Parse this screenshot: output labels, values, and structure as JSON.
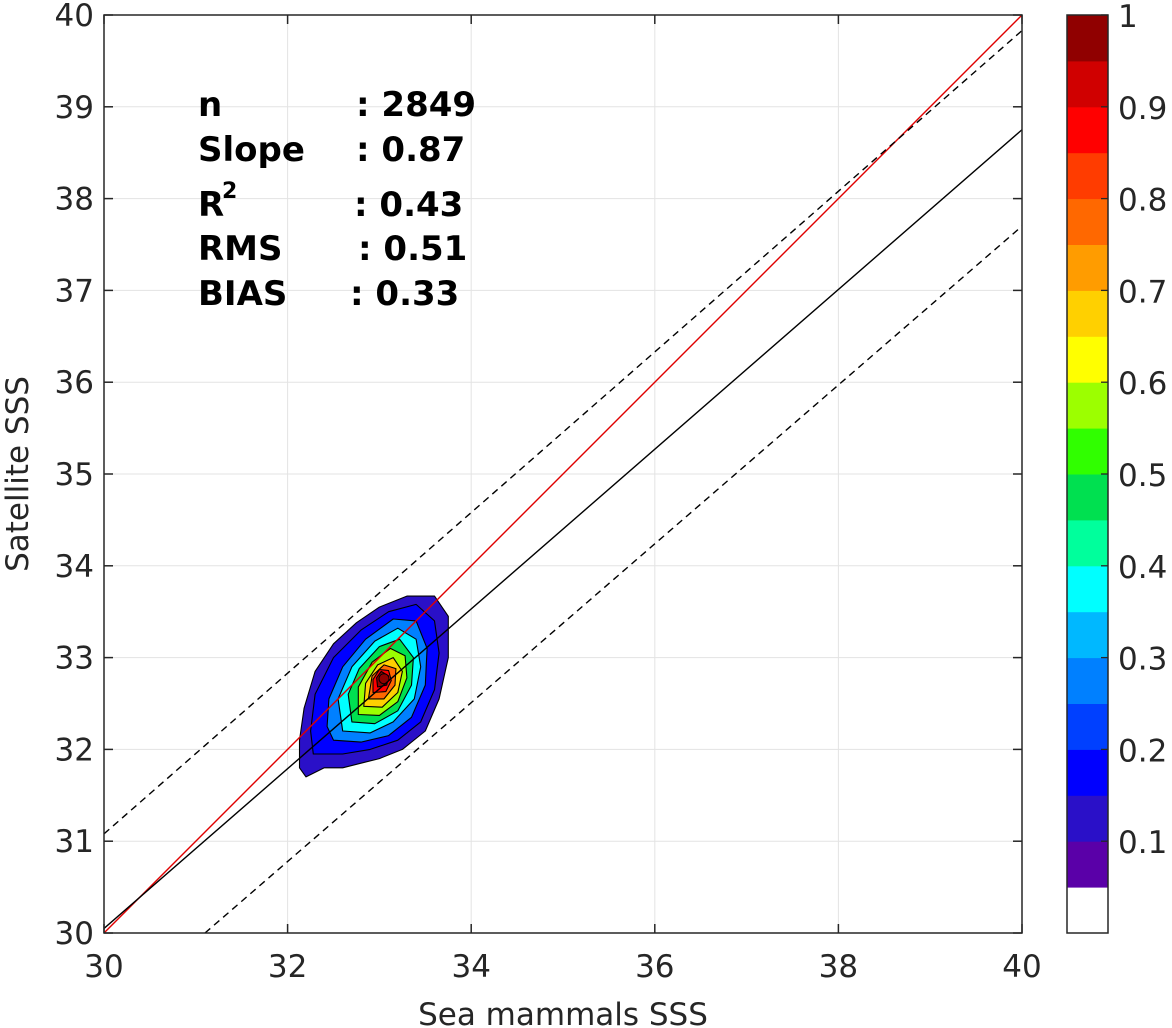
{
  "chart_data": {
    "type": "heatmap",
    "subtype": "density contour scatter comparison",
    "xlabel": "Sea mammals SSS",
    "ylabel": "Satellite SSS",
    "xlim": [
      30,
      40
    ],
    "ylim": [
      30,
      40
    ],
    "x_ticks": [
      "30",
      "32",
      "34",
      "36",
      "38",
      "40"
    ],
    "y_ticks": [
      "30",
      "31",
      "32",
      "33",
      "34",
      "35",
      "36",
      "37",
      "38",
      "39",
      "40"
    ],
    "grid": true,
    "stats": {
      "n_label": "n",
      "n_value": ": 2849",
      "slope_label": "Slope",
      "slope_value": ": 0.87",
      "r2_label": "R",
      "r2_sup": "2",
      "r2_value": ": 0.43",
      "rms_label": "RMS",
      "rms_value": ": 0.51",
      "bias_label": "BIAS",
      "bias_value": ": 0.33"
    },
    "lines": [
      {
        "role": "one-to-one",
        "color": "#e00000",
        "style": "solid",
        "from": [
          30,
          30
        ],
        "to": [
          40,
          40
        ]
      },
      {
        "role": "regression",
        "color": "#000000",
        "style": "solid",
        "from": [
          30,
          30.05
        ],
        "to": [
          40,
          38.75
        ]
      },
      {
        "role": "upper bound",
        "color": "#000000",
        "style": "dashed",
        "from": [
          30,
          31.08
        ],
        "to": [
          40,
          39.83
        ]
      },
      {
        "role": "lower bound",
        "color": "#000000",
        "style": "dashed",
        "from": [
          31.1,
          30
        ],
        "to": [
          40,
          37.7
        ]
      }
    ],
    "density": {
      "peak": [
        33.05,
        32.77
      ],
      "levels": [
        0.05,
        0.1,
        0.2,
        0.3,
        0.4,
        0.5,
        0.6,
        0.7,
        0.8,
        0.9
      ],
      "contours": [
        {
          "level": 0.05,
          "points": [
            [
              32.2,
              31.7
            ],
            [
              32.4,
              31.8
            ],
            [
              32.6,
              31.8
            ],
            [
              32.8,
              31.85
            ],
            [
              33.0,
              31.9
            ],
            [
              33.25,
              32.0
            ],
            [
              33.5,
              32.2
            ],
            [
              33.65,
              32.55
            ],
            [
              33.75,
              33.0
            ],
            [
              33.75,
              33.45
            ],
            [
              33.6,
              33.67
            ],
            [
              33.3,
              33.67
            ],
            [
              33.0,
              33.55
            ],
            [
              32.75,
              33.38
            ],
            [
              32.5,
              33.15
            ],
            [
              32.3,
              32.85
            ],
            [
              32.18,
              32.45
            ],
            [
              32.13,
              32.1
            ],
            [
              32.13,
              31.8
            ]
          ]
        },
        {
          "level": 0.1,
          "points": [
            [
              32.28,
              31.95
            ],
            [
              32.6,
              31.95
            ],
            [
              32.9,
              32.0
            ],
            [
              33.2,
              32.1
            ],
            [
              33.45,
              32.3
            ],
            [
              33.6,
              32.65
            ],
            [
              33.65,
              33.05
            ],
            [
              33.6,
              33.4
            ],
            [
              33.4,
              33.58
            ],
            [
              33.1,
              33.5
            ],
            [
              32.8,
              33.3
            ],
            [
              32.5,
              33.0
            ],
            [
              32.3,
              32.6
            ],
            [
              32.25,
              32.2
            ]
          ]
        },
        {
          "level": 0.2,
          "points": [
            [
              32.5,
              32.1
            ],
            [
              32.8,
              32.08
            ],
            [
              33.1,
              32.15
            ],
            [
              33.35,
              32.35
            ],
            [
              33.5,
              32.7
            ],
            [
              33.52,
              33.1
            ],
            [
              33.4,
              33.4
            ],
            [
              33.15,
              33.42
            ],
            [
              32.85,
              33.2
            ],
            [
              32.6,
              32.9
            ],
            [
              32.45,
              32.55
            ],
            [
              32.43,
              32.25
            ]
          ]
        },
        {
          "level": 0.3,
          "points": [
            [
              32.6,
              32.2
            ],
            [
              32.9,
              32.18
            ],
            [
              33.15,
              32.3
            ],
            [
              33.38,
              32.55
            ],
            [
              33.45,
              32.9
            ],
            [
              33.4,
              33.2
            ],
            [
              33.2,
              33.32
            ],
            [
              32.95,
              33.18
            ],
            [
              32.7,
              32.9
            ],
            [
              32.55,
              32.55
            ]
          ]
        },
        {
          "level": 0.4,
          "points": [
            [
              32.7,
              32.3
            ],
            [
              32.95,
              32.28
            ],
            [
              33.2,
              32.42
            ],
            [
              33.35,
              32.7
            ],
            [
              33.37,
              33.0
            ],
            [
              33.22,
              33.2
            ],
            [
              33.0,
              33.12
            ],
            [
              32.78,
              32.88
            ],
            [
              32.66,
              32.6
            ]
          ]
        },
        {
          "level": 0.5,
          "points": [
            [
              32.77,
              32.38
            ],
            [
              33.0,
              32.37
            ],
            [
              33.2,
              32.52
            ],
            [
              33.3,
              32.78
            ],
            [
              33.28,
              33.02
            ],
            [
              33.12,
              33.1
            ],
            [
              32.92,
              32.95
            ],
            [
              32.77,
              32.68
            ]
          ]
        },
        {
          "level": 0.6,
          "points": [
            [
              32.83,
              32.47
            ],
            [
              33.03,
              32.46
            ],
            [
              33.2,
              32.62
            ],
            [
              33.25,
              32.85
            ],
            [
              33.15,
              33.0
            ],
            [
              32.98,
              32.92
            ],
            [
              32.85,
              32.72
            ]
          ]
        },
        {
          "level": 0.7,
          "points": [
            [
              32.88,
              32.55
            ],
            [
              33.05,
              32.55
            ],
            [
              33.17,
              32.7
            ],
            [
              33.18,
              32.88
            ],
            [
              33.05,
              32.92
            ],
            [
              32.92,
              32.8
            ]
          ]
        },
        {
          "level": 0.8,
          "points": [
            [
              32.93,
              32.62
            ],
            [
              33.07,
              32.63
            ],
            [
              33.13,
              32.75
            ],
            [
              33.1,
              32.86
            ],
            [
              33.0,
              32.87
            ],
            [
              32.93,
              32.76
            ]
          ]
        },
        {
          "level": 0.9,
          "points": [
            [
              32.98,
              32.68
            ],
            [
              33.08,
              32.7
            ],
            [
              33.1,
              32.8
            ],
            [
              33.02,
              32.85
            ],
            [
              32.97,
              32.78
            ]
          ]
        }
      ]
    },
    "colorbar": {
      "ticks": [
        "0.1",
        "0.2",
        "0.3",
        "0.4",
        "0.5",
        "0.6",
        "0.7",
        "0.8",
        "0.9",
        "1"
      ],
      "tick_values": [
        0.1,
        0.2,
        0.3,
        0.4,
        0.5,
        0.6,
        0.7,
        0.8,
        0.9,
        1.0
      ],
      "colors": [
        "#ffffff",
        "#5a00a8",
        "#2a10c8",
        "#0000ff",
        "#0040ff",
        "#0080ff",
        "#00b8ff",
        "#00ffff",
        "#00ff9c",
        "#00e050",
        "#30ff00",
        "#9cff00",
        "#ffff00",
        "#ffd000",
        "#ff9c00",
        "#ff6800",
        "#ff3c00",
        "#ff0000",
        "#d00000",
        "#900000"
      ]
    }
  }
}
